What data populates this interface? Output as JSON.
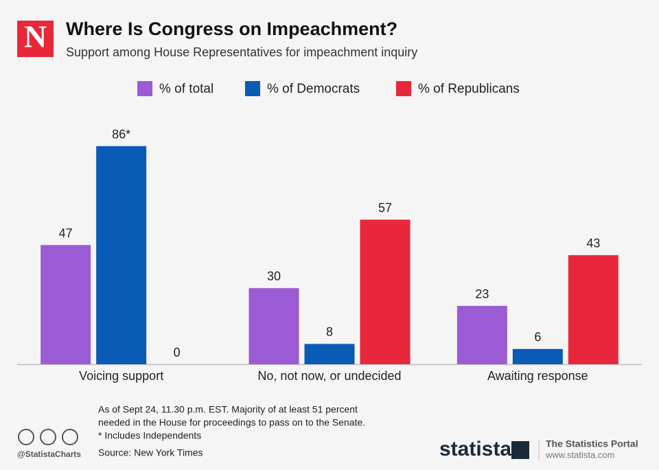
{
  "logo": "N",
  "chart_data": {
    "type": "bar",
    "title": "Where Is Congress on Impeachment?",
    "subtitle": "Support among House Representatives for impeachment inquiry",
    "categories": [
      "Voicing support",
      "No, not now, or undecided",
      "Awaiting response"
    ],
    "series": [
      {
        "name": "% of total",
        "color": "#9b5bd4",
        "values": [
          47,
          30,
          23
        ]
      },
      {
        "name": "% of Democrats",
        "color": "#0a5bb5",
        "values": [
          86,
          8,
          6
        ],
        "value_labels": [
          "86*",
          "8",
          "6"
        ]
      },
      {
        "name": "% of Republicans",
        "color": "#e8283a",
        "values": [
          0,
          57,
          43
        ]
      }
    ],
    "ylim": [
      0,
      100
    ]
  },
  "footer": {
    "notes": [
      "As of Sept 24, 11.30 p.m. EST. Majority of at least 51 percent",
      "needed in the House for proceedings to pass on to the Senate.",
      "* Includes Independents"
    ],
    "source": "Source: New York Times",
    "handle": "@StatistaCharts",
    "brand": "statista",
    "portal": "The Statistics Portal",
    "url": "www.statista.com"
  }
}
